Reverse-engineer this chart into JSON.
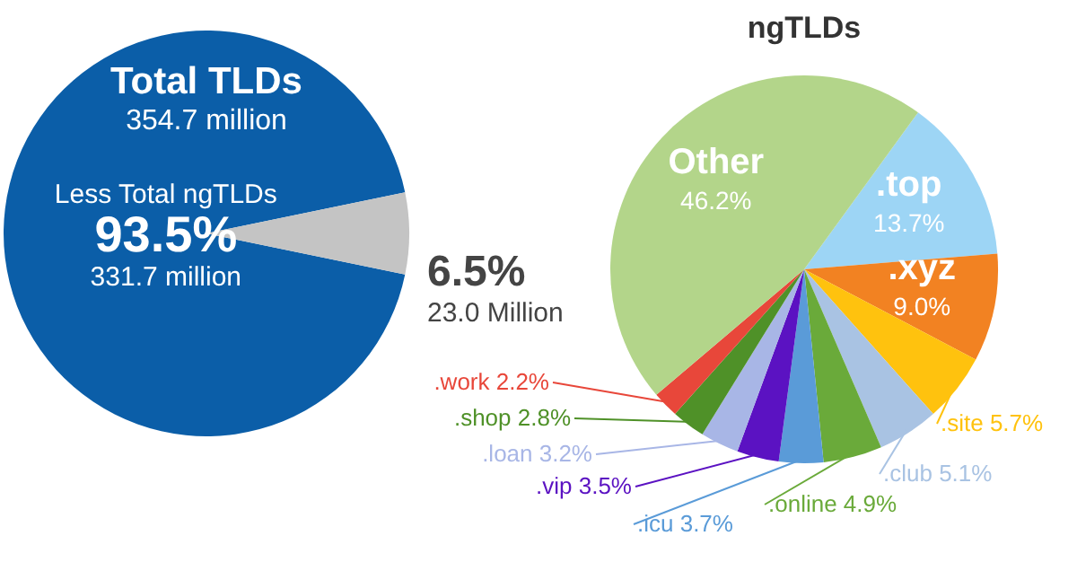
{
  "chart_data": [
    {
      "type": "pie",
      "title": "Total TLDs",
      "subtitle": "354.7 million",
      "categories": [
        "Less Total ngTLDs",
        null
      ],
      "values": [
        93.5,
        6.5
      ],
      "colors": [
        "#0b5ea8",
        "#c4c4c4"
      ],
      "value_labels": [
        "93.5%",
        "6.5%"
      ],
      "annotations": [
        "331.7 million",
        "23.0 Million"
      ]
    },
    {
      "type": "pie",
      "title": "ngTLDs",
      "categories": [
        ".top",
        ".xyz",
        ".site",
        ".club",
        ".online",
        ".icu",
        ".vip",
        ".loan",
        ".shop",
        ".work",
        "Other"
      ],
      "values": [
        13.7,
        9.0,
        5.7,
        5.1,
        4.9,
        3.7,
        3.5,
        3.2,
        2.8,
        2.2,
        46.2
      ],
      "colors": [
        "#9dd5f5",
        "#f28222",
        "#ffc20e",
        "#a9c3e3",
        "#6aaa3a",
        "#5a9bd8",
        "#5b12c2",
        "#a8b6e6",
        "#4f9128",
        "#e8473a",
        "#b3d58a"
      ],
      "value_labels": [
        "13.7%",
        "9.0%",
        "5.7%",
        "5.1%",
        "4.9%",
        "3.7%",
        "3.5%",
        "3.2%",
        "2.8%",
        "2.2%",
        "46.2%"
      ]
    }
  ]
}
